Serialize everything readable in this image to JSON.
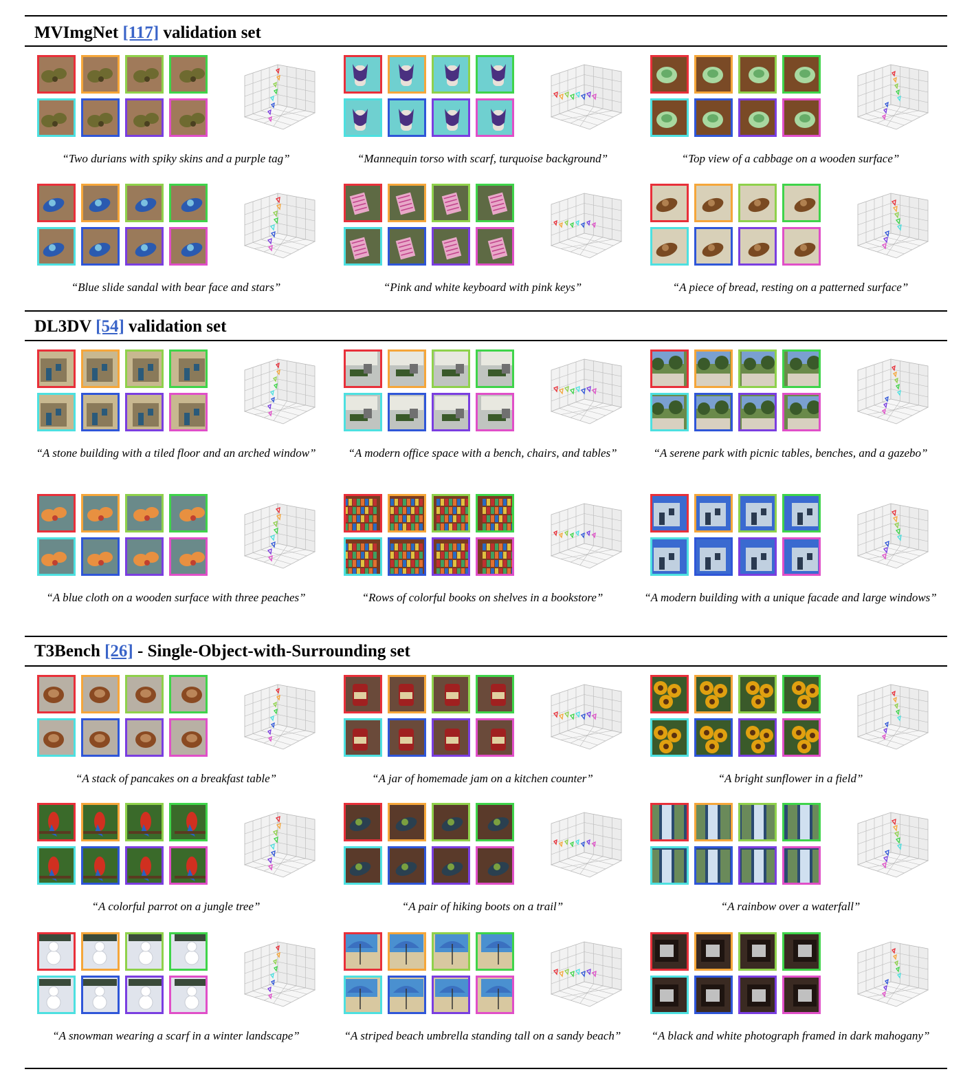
{
  "sections": [
    {
      "title_pre": "MVImgNet ",
      "ref": "[117]",
      "title_post": " validation set",
      "rows": [
        {
          "cells": [
            {
              "caption": "“Two durians with spiky skins and a purple tag”",
              "scene": "durian"
            },
            {
              "caption": "“Mannequin torso with scarf, turquoise background”",
              "scene": "scarf"
            },
            {
              "caption": "“Top view of a cabbage on a wooden surface”",
              "scene": "cabbage"
            }
          ]
        },
        {
          "cells": [
            {
              "caption": "“Blue slide sandal with bear face and stars”",
              "scene": "sandal"
            },
            {
              "caption": "“Pink and white keyboard with pink keys”",
              "scene": "keyboard"
            },
            {
              "caption": "“A piece of bread, resting on a patterned surface”",
              "scene": "bread"
            }
          ]
        }
      ]
    },
    {
      "title_pre": "DL3DV ",
      "ref": "[54]",
      "title_post": " validation set",
      "rows": [
        {
          "cells": [
            {
              "caption": "“A stone building with a tiled floor and an arched window”",
              "scene": "stone"
            },
            {
              "caption": "“A modern office space with a bench, chairs, and tables”",
              "scene": "office"
            },
            {
              "caption": "“A serene park with picnic tables, benches, and a gazebo”",
              "scene": "park"
            }
          ]
        },
        {
          "cells": [
            {
              "caption": "“A blue cloth on a wooden surface with three peaches”",
              "scene": "peaches"
            },
            {
              "caption": "“Rows of colorful books on shelves in a bookstore”",
              "scene": "books"
            },
            {
              "caption": "“A modern building with a unique facade and large windows”",
              "scene": "building"
            }
          ]
        }
      ]
    },
    {
      "title_pre": "T3Bench ",
      "ref": "[26]",
      "title_post": " - Single-Object-with-Surrounding set",
      "rows": [
        {
          "cells": [
            {
              "caption": "“A stack of pancakes on a breakfast table”",
              "scene": "pancakes"
            },
            {
              "caption": "“A jar of homemade jam on a kitchen counter”",
              "scene": "jam"
            },
            {
              "caption": "“A bright sunflower in a field”",
              "scene": "sunflower"
            }
          ]
        },
        {
          "cells": [
            {
              "caption": "“A colorful parrot on a jungle tree”",
              "scene": "parrot"
            },
            {
              "caption": "“A pair of hiking boots on a trail”",
              "scene": "boots"
            },
            {
              "caption": "“A rainbow over a waterfall”",
              "scene": "waterfall"
            }
          ]
        },
        {
          "cells": [
            {
              "caption": "“A snowman wearing a scarf in a winter landscape”",
              "scene": "snowman"
            },
            {
              "caption": "“A striped beach umbrella standing tall on a sandy beach”",
              "scene": "umbrella"
            },
            {
              "caption": "“A black and white photograph framed in dark mahogany”",
              "scene": "frame"
            }
          ]
        }
      ]
    }
  ],
  "frame_colors": [
    "#e8303a",
    "#f5a63a",
    "#8fd14b",
    "#3fd44a",
    "#4de0e0",
    "#2f56d8",
    "#7a3ee0",
    "#e04fc8"
  ]
}
